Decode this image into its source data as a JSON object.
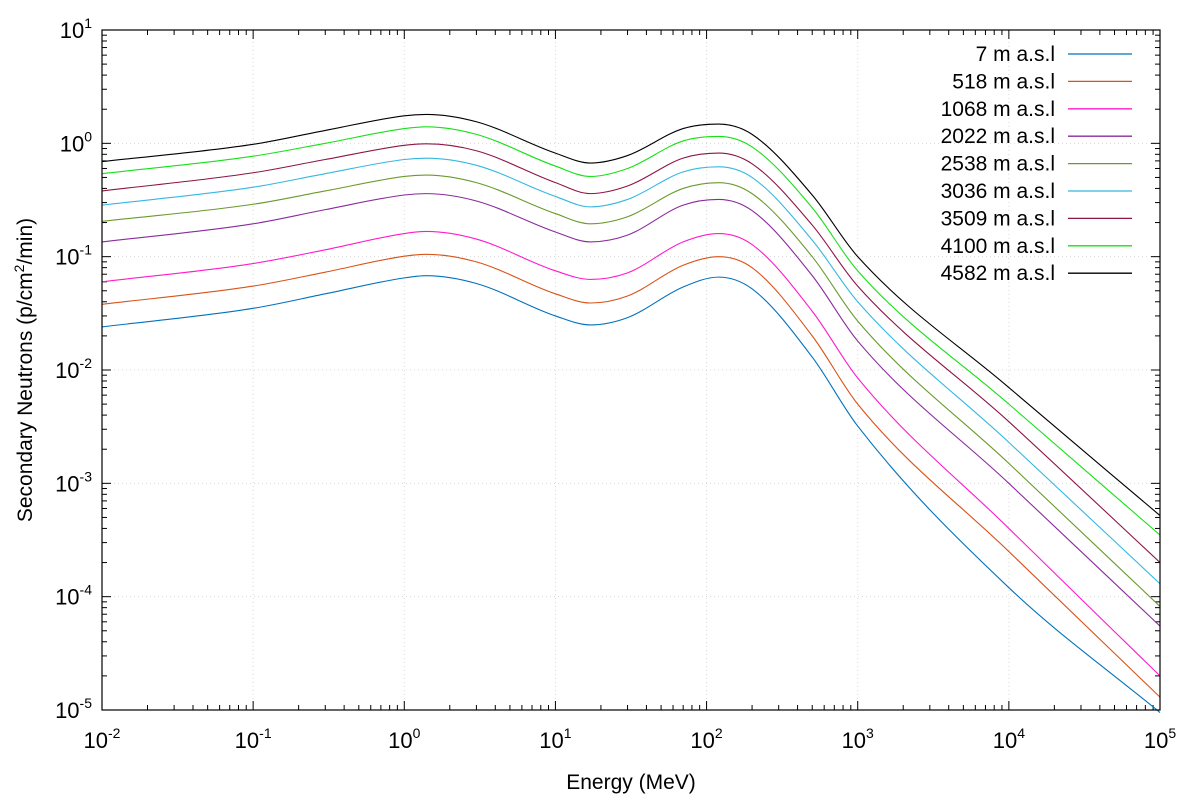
{
  "chart_data": {
    "type": "line",
    "xlabel": "Energy (MeV)",
    "ylabel": {
      "prefix": "Secondary Neutrons (p/cm",
      "sup": "2",
      "suffix": "/min)"
    },
    "x_scale": "log",
    "y_scale": "log",
    "xlim": [
      0.01,
      100000
    ],
    "ylim": [
      1e-05,
      10
    ],
    "grid": true,
    "legend_placement": "top-right",
    "x_ticks": [
      {
        "value": 0.01,
        "base": "10",
        "exp": "-2"
      },
      {
        "value": 0.1,
        "base": "10",
        "exp": "-1"
      },
      {
        "value": 1,
        "base": "10",
        "exp": "0"
      },
      {
        "value": 10,
        "base": "10",
        "exp": "1"
      },
      {
        "value": 100,
        "base": "10",
        "exp": "2"
      },
      {
        "value": 1000,
        "base": "10",
        "exp": "3"
      },
      {
        "value": 10000,
        "base": "10",
        "exp": "4"
      },
      {
        "value": 100000,
        "base": "10",
        "exp": "5"
      }
    ],
    "y_ticks": [
      {
        "value": 1e-05,
        "base": "10",
        "exp": "-5"
      },
      {
        "value": 0.0001,
        "base": "10",
        "exp": "-4"
      },
      {
        "value": 0.001,
        "base": "10",
        "exp": "-3"
      },
      {
        "value": 0.01,
        "base": "10",
        "exp": "-2"
      },
      {
        "value": 0.1,
        "base": "10",
        "exp": "-1"
      },
      {
        "value": 1,
        "base": "10",
        "exp": "0"
      },
      {
        "value": 10,
        "base": "10",
        "exp": "1"
      }
    ],
    "x": [
      0.01,
      0.1,
      0.3,
      1,
      1.4,
      3,
      10,
      17,
      30,
      70,
      120,
      200,
      500,
      1000,
      10000,
      100000
    ],
    "series": [
      {
        "name": "7 m a.s.l",
        "color": "#0072bd",
        "values": [
          0.024,
          0.035,
          0.047,
          0.065,
          0.068,
          0.058,
          0.03,
          0.025,
          0.029,
          0.054,
          0.066,
          0.052,
          0.013,
          0.0032,
          0.00012,
          9.5e-06
        ]
      },
      {
        "name": "518 m a.s.l",
        "color": "#d95319",
        "values": [
          0.038,
          0.055,
          0.073,
          0.101,
          0.105,
          0.09,
          0.047,
          0.039,
          0.045,
          0.084,
          0.1,
          0.08,
          0.02,
          0.005,
          0.00025,
          1.3e-05
        ]
      },
      {
        "name": "1068 m a.s.l",
        "color": "#ff1bcc",
        "values": [
          0.06,
          0.087,
          0.115,
          0.16,
          0.167,
          0.143,
          0.075,
          0.063,
          0.072,
          0.135,
          0.16,
          0.128,
          0.033,
          0.0085,
          0.0004,
          2e-05
        ]
      },
      {
        "name": "2022 m a.s.l",
        "color": "#8a2b9c",
        "values": [
          0.135,
          0.195,
          0.26,
          0.35,
          0.36,
          0.31,
          0.165,
          0.135,
          0.155,
          0.285,
          0.32,
          0.255,
          0.068,
          0.018,
          0.001,
          5.5e-05
        ]
      },
      {
        "name": "2538 m a.s.l",
        "color": "#6b9a2c",
        "values": [
          0.205,
          0.29,
          0.38,
          0.51,
          0.525,
          0.45,
          0.24,
          0.195,
          0.225,
          0.4,
          0.45,
          0.36,
          0.1,
          0.027,
          0.0015,
          8.2e-05
        ]
      },
      {
        "name": "3036 m a.s.l",
        "color": "#34b8e0",
        "values": [
          0.285,
          0.41,
          0.54,
          0.72,
          0.74,
          0.64,
          0.34,
          0.275,
          0.32,
          0.56,
          0.62,
          0.5,
          0.14,
          0.04,
          0.0023,
          0.00013
        ]
      },
      {
        "name": "3509 m a.s.l",
        "color": "#8e1445",
        "values": [
          0.38,
          0.55,
          0.72,
          0.96,
          0.99,
          0.86,
          0.45,
          0.36,
          0.42,
          0.74,
          0.82,
          0.66,
          0.19,
          0.055,
          0.0035,
          0.0002
        ]
      },
      {
        "name": "4100 m a.s.l",
        "color": "#16e016",
        "values": [
          0.54,
          0.77,
          1.0,
          1.35,
          1.4,
          1.2,
          0.63,
          0.51,
          0.6,
          1.05,
          1.15,
          0.93,
          0.27,
          0.075,
          0.005,
          0.00035
        ]
      },
      {
        "name": "4582 m a.s.l",
        "color": "#000000",
        "values": [
          0.69,
          0.98,
          1.3,
          1.75,
          1.8,
          1.55,
          0.82,
          0.67,
          0.78,
          1.35,
          1.48,
          1.2,
          0.35,
          0.1,
          0.007,
          0.00052
        ]
      }
    ]
  }
}
